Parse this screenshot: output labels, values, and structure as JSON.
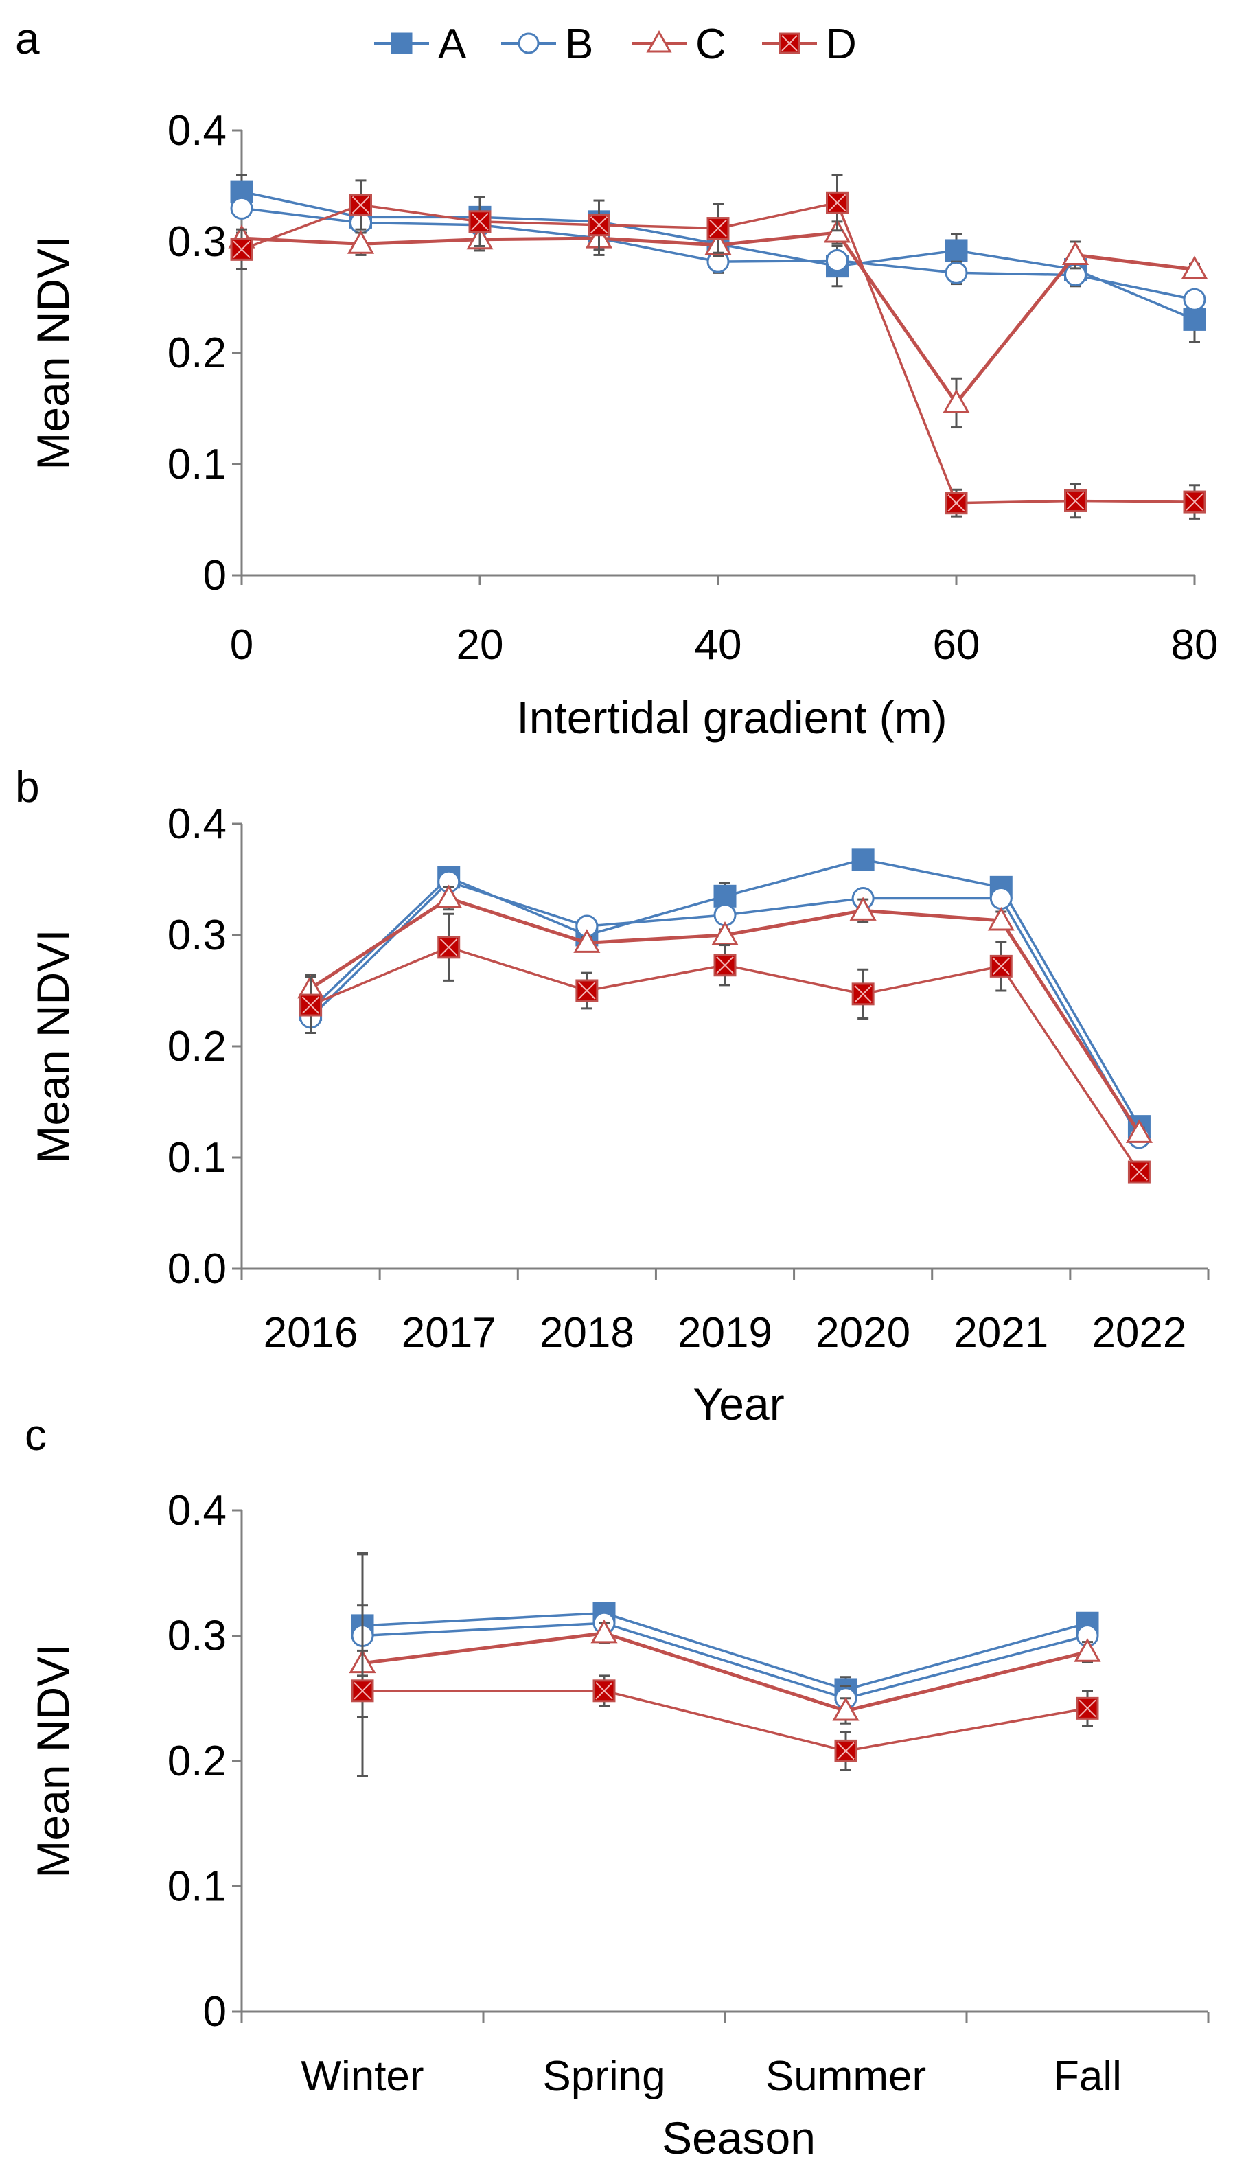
{
  "legend": {
    "entries": [
      {
        "key": "A",
        "label": "A"
      },
      {
        "key": "B",
        "label": "B"
      },
      {
        "key": "C",
        "label": "C"
      },
      {
        "key": "D",
        "label": "D"
      }
    ]
  },
  "series_styles": {
    "A": {
      "color": "#4a7ebb",
      "marker": "square-filled"
    },
    "B": {
      "color": "#4a7ebb",
      "marker": "circle-open"
    },
    "C": {
      "color": "#c0504d",
      "marker": "triangle-open"
    },
    "D": {
      "color": "#c0504d",
      "marker": "square-x"
    }
  },
  "chart_data": [
    {
      "panel": "a",
      "type": "line",
      "title": "",
      "xlabel": "Intertidal gradient (m)",
      "ylabel": "Mean NDVI",
      "x": [
        0,
        10,
        20,
        30,
        40,
        50,
        60,
        70,
        80
      ],
      "xlim": [
        0,
        80
      ],
      "xticks": [
        0,
        20,
        40,
        60,
        80
      ],
      "xtick_labels": [
        "0",
        "20",
        "40",
        "60",
        "80"
      ],
      "ylim": [
        0,
        0.4
      ],
      "yticks": [
        0,
        0.1,
        0.2,
        0.3,
        0.4
      ],
      "ytick_labels": [
        "0",
        "0.1",
        "0.2",
        "0.3",
        "0.4"
      ],
      "series": [
        {
          "name": "A",
          "values": [
            0.345,
            0.322,
            0.322,
            0.318,
            0.298,
            0.278,
            0.292,
            0.275,
            0.23
          ],
          "errors": [
            0.015,
            0.005,
            0.005,
            0.005,
            0.005,
            0.018,
            0.015,
            0.01,
            0.02
          ]
        },
        {
          "name": "B",
          "values": [
            0.33,
            0.317,
            0.315,
            0.303,
            0.282,
            0.283,
            0.272,
            0.27,
            0.248
          ],
          "errors": [
            0.005,
            0.005,
            0.005,
            0.01,
            0.01,
            0.005,
            0.01,
            0.01,
            0.005
          ]
        },
        {
          "name": "C",
          "values": [
            0.303,
            0.298,
            0.302,
            0.303,
            0.297,
            0.308,
            0.155,
            0.288,
            0.275
          ],
          "errors": [
            0.005,
            0.01,
            0.01,
            0.015,
            0.01,
            0.01,
            0.022,
            0.012,
            0.005
          ]
        },
        {
          "name": "D",
          "values": [
            0.293,
            0.333,
            0.318,
            0.315,
            0.312,
            0.335,
            0.065,
            0.067,
            0.066
          ],
          "errors": [
            0.018,
            0.022,
            0.022,
            0.022,
            0.022,
            0.025,
            0.012,
            0.015,
            0.015
          ]
        }
      ]
    },
    {
      "panel": "b",
      "type": "line",
      "title": "",
      "xlabel": "Year",
      "ylabel": "Mean NDVI",
      "categories": [
        "2016",
        "2017",
        "2018",
        "2019",
        "2020",
        "2021",
        "2022"
      ],
      "ylim": [
        0,
        0.4
      ],
      "yticks": [
        0,
        0.1,
        0.2,
        0.3,
        0.4
      ],
      "ytick_labels": [
        "0.0",
        "0.1",
        "0.2",
        "0.3",
        "0.4"
      ],
      "series": [
        {
          "name": "A",
          "values": [
            0.233,
            0.352,
            0.3,
            0.335,
            0.368,
            0.343,
            0.128
          ],
          "errors": [
            0.005,
            0.005,
            0.005,
            0.012,
            0.005,
            0.005,
            0.005
          ]
        },
        {
          "name": "B",
          "values": [
            0.226,
            0.348,
            0.308,
            0.318,
            0.333,
            0.333,
            0.118
          ],
          "errors": [
            0.005,
            0.005,
            0.005,
            0.005,
            0.005,
            0.005,
            0.005
          ]
        },
        {
          "name": "C",
          "values": [
            0.252,
            0.333,
            0.293,
            0.3,
            0.322,
            0.313,
            0.122
          ],
          "errors": [
            0.012,
            0.01,
            0.005,
            0.005,
            0.01,
            0.008,
            0.005
          ]
        },
        {
          "name": "D",
          "values": [
            0.237,
            0.289,
            0.25,
            0.273,
            0.247,
            0.272,
            0.087
          ],
          "errors": [
            0.025,
            0.03,
            0.016,
            0.018,
            0.022,
            0.022,
            0.005
          ]
        }
      ]
    },
    {
      "panel": "c",
      "type": "line",
      "title": "",
      "xlabel": "Season",
      "ylabel": "Mean NDVI",
      "categories": [
        "Winter",
        "Spring",
        "Summer",
        "Fall"
      ],
      "ylim": [
        0,
        0.4
      ],
      "yticks": [
        0,
        0.1,
        0.2,
        0.3,
        0.4
      ],
      "ytick_labels": [
        "0",
        "0.1",
        "0.2",
        "0.3",
        "0.4"
      ],
      "series": [
        {
          "name": "A",
          "values": [
            0.308,
            0.318,
            0.257,
            0.31
          ],
          "errors": [
            0.058,
            0.005,
            0.01,
            0.005
          ]
        },
        {
          "name": "B",
          "values": [
            0.3,
            0.31,
            0.25,
            0.3
          ],
          "errors": [
            0.065,
            0.005,
            0.01,
            0.005
          ]
        },
        {
          "name": "C",
          "values": [
            0.278,
            0.302,
            0.24,
            0.287
          ],
          "errors": [
            0.01,
            0.008,
            0.01,
            0.008
          ]
        },
        {
          "name": "D",
          "values": [
            0.256,
            0.256,
            0.208,
            0.242
          ],
          "errors": [
            0.068,
            0.012,
            0.015,
            0.014
          ]
        }
      ]
    }
  ]
}
